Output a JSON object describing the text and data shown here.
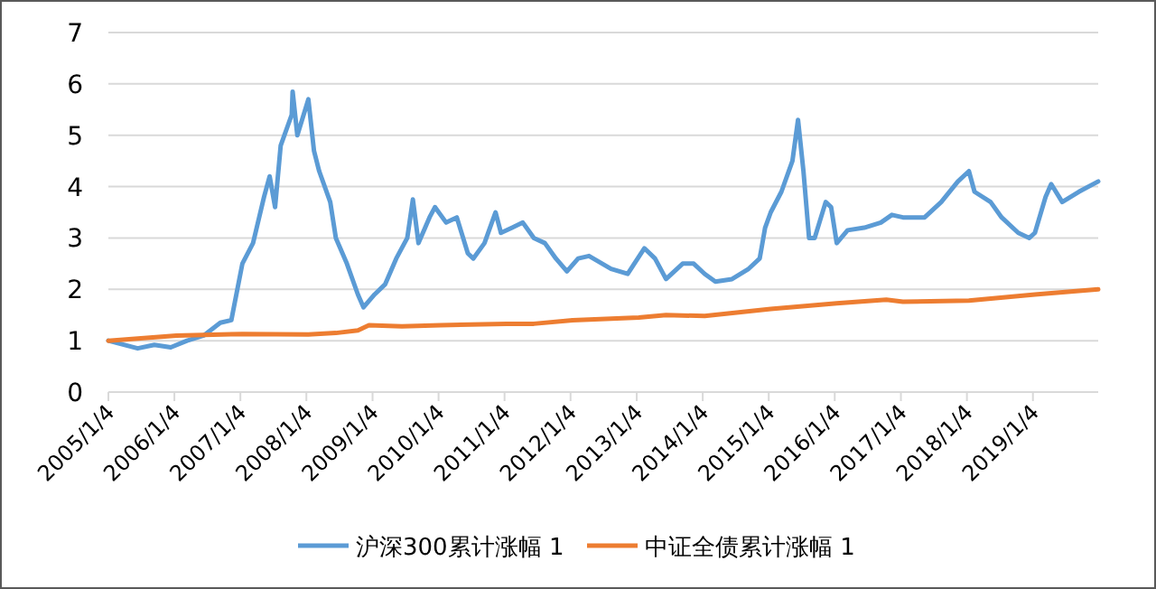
{
  "chart_data": {
    "type": "line",
    "ylim": [
      0,
      7
    ],
    "yticks": [
      0,
      1,
      2,
      3,
      4,
      5,
      6,
      7
    ],
    "xlim": [
      "2005-01-04",
      "2019-12-31"
    ],
    "xticks": [
      {
        "value": "2005-01-04",
        "label": "2005/1/4"
      },
      {
        "value": "2006-01-04",
        "label": "2006/1/4"
      },
      {
        "value": "2007-01-04",
        "label": "2007/1/4"
      },
      {
        "value": "2008-01-04",
        "label": "2008/1/4"
      },
      {
        "value": "2009-01-04",
        "label": "2009/1/4"
      },
      {
        "value": "2010-01-04",
        "label": "2010/1/4"
      },
      {
        "value": "2011-01-04",
        "label": "2011/1/4"
      },
      {
        "value": "2012-01-04",
        "label": "2012/1/4"
      },
      {
        "value": "2013-01-04",
        "label": "2013/1/4"
      },
      {
        "value": "2014-01-04",
        "label": "2014/1/4"
      },
      {
        "value": "2015-01-04",
        "label": "2015/1/4"
      },
      {
        "value": "2016-01-04",
        "label": "2016/1/4"
      },
      {
        "value": "2017-01-04",
        "label": "2017/1/4"
      },
      {
        "value": "2018-01-04",
        "label": "2018/1/4"
      },
      {
        "value": "2019-01-04",
        "label": "2019/1/4"
      }
    ],
    "grid": "y",
    "legend": "bottom",
    "line_style": "solid",
    "series": [
      {
        "name": "沪深300累计涨幅 1",
        "color": "#5b9bd5",
        "x": [
          "2005-01-04",
          "2005-06",
          "2005-09",
          "2005-12",
          "2006-03",
          "2006-06",
          "2006-09",
          "2006-11",
          "2007-01",
          "2007-03",
          "2007-05",
          "2007-06",
          "2007-07",
          "2007-08",
          "2007-10",
          "2007-10-20",
          "2007-11",
          "2008-01",
          "2008-02",
          "2008-03",
          "2008-05",
          "2008-06",
          "2008-08",
          "2008-10",
          "2008-11",
          "2009-01",
          "2009-03",
          "2009-05",
          "2009-07",
          "2009-08",
          "2009-09",
          "2009-11",
          "2009-12",
          "2010-02",
          "2010-04",
          "2010-06",
          "2010-07",
          "2010-09",
          "2010-11",
          "2010-12",
          "2011-02",
          "2011-04",
          "2011-06",
          "2011-08",
          "2011-10",
          "2011-12",
          "2012-02",
          "2012-04",
          "2012-08",
          "2012-11",
          "2013-02",
          "2013-04",
          "2013-06",
          "2013-09",
          "2013-11",
          "2014-01",
          "2014-03",
          "2014-06",
          "2014-09",
          "2014-11",
          "2014-12",
          "2015-01",
          "2015-03",
          "2015-05",
          "2015-06",
          "2015-07",
          "2015-08",
          "2015-09",
          "2015-11",
          "2015-12",
          "2016-01",
          "2016-03",
          "2016-06",
          "2016-09",
          "2016-11",
          "2017-01",
          "2017-05",
          "2017-08",
          "2017-11",
          "2018-01",
          "2018-02",
          "2018-05",
          "2018-07",
          "2018-10",
          "2018-12",
          "2019-01",
          "2019-03",
          "2019-04",
          "2019-06",
          "2019-09",
          "2019-12-31"
        ],
        "values": [
          1.0,
          0.85,
          0.92,
          0.87,
          1.0,
          1.1,
          1.35,
          1.4,
          2.5,
          2.9,
          3.8,
          4.2,
          3.6,
          4.8,
          5.4,
          5.85,
          5.0,
          5.7,
          4.7,
          4.3,
          3.7,
          3.0,
          2.5,
          1.9,
          1.65,
          1.9,
          2.1,
          2.6,
          3.0,
          3.75,
          2.9,
          3.4,
          3.6,
          3.3,
          3.4,
          2.7,
          2.6,
          2.9,
          3.5,
          3.1,
          3.2,
          3.3,
          3.0,
          2.9,
          2.6,
          2.35,
          2.6,
          2.65,
          2.4,
          2.3,
          2.8,
          2.6,
          2.2,
          2.5,
          2.5,
          2.3,
          2.15,
          2.2,
          2.4,
          2.6,
          3.2,
          3.5,
          3.9,
          4.5,
          5.3,
          4.3,
          3.0,
          3.0,
          3.7,
          3.6,
          2.9,
          3.15,
          3.2,
          3.3,
          3.45,
          3.4,
          3.4,
          3.7,
          4.1,
          4.3,
          3.9,
          3.7,
          3.4,
          3.1,
          3.0,
          3.1,
          3.8,
          4.05,
          3.7,
          3.9,
          4.1
        ]
      },
      {
        "name": "中证全债累计涨幅 1",
        "color": "#ed7d31",
        "x": [
          "2005-01-04",
          "2006-01",
          "2007-01",
          "2008-01",
          "2008-06",
          "2008-10",
          "2008-12",
          "2009-06",
          "2010-01",
          "2011-01",
          "2011-06",
          "2012-01",
          "2013-01",
          "2013-06",
          "2014-01",
          "2015-01",
          "2016-01",
          "2016-10",
          "2017-01",
          "2018-01",
          "2019-01",
          "2019-12-31"
        ],
        "values": [
          1.0,
          1.1,
          1.13,
          1.12,
          1.15,
          1.2,
          1.3,
          1.28,
          1.3,
          1.33,
          1.33,
          1.4,
          1.45,
          1.5,
          1.48,
          1.62,
          1.73,
          1.8,
          1.76,
          1.78,
          1.9,
          2.0
        ]
      }
    ]
  }
}
